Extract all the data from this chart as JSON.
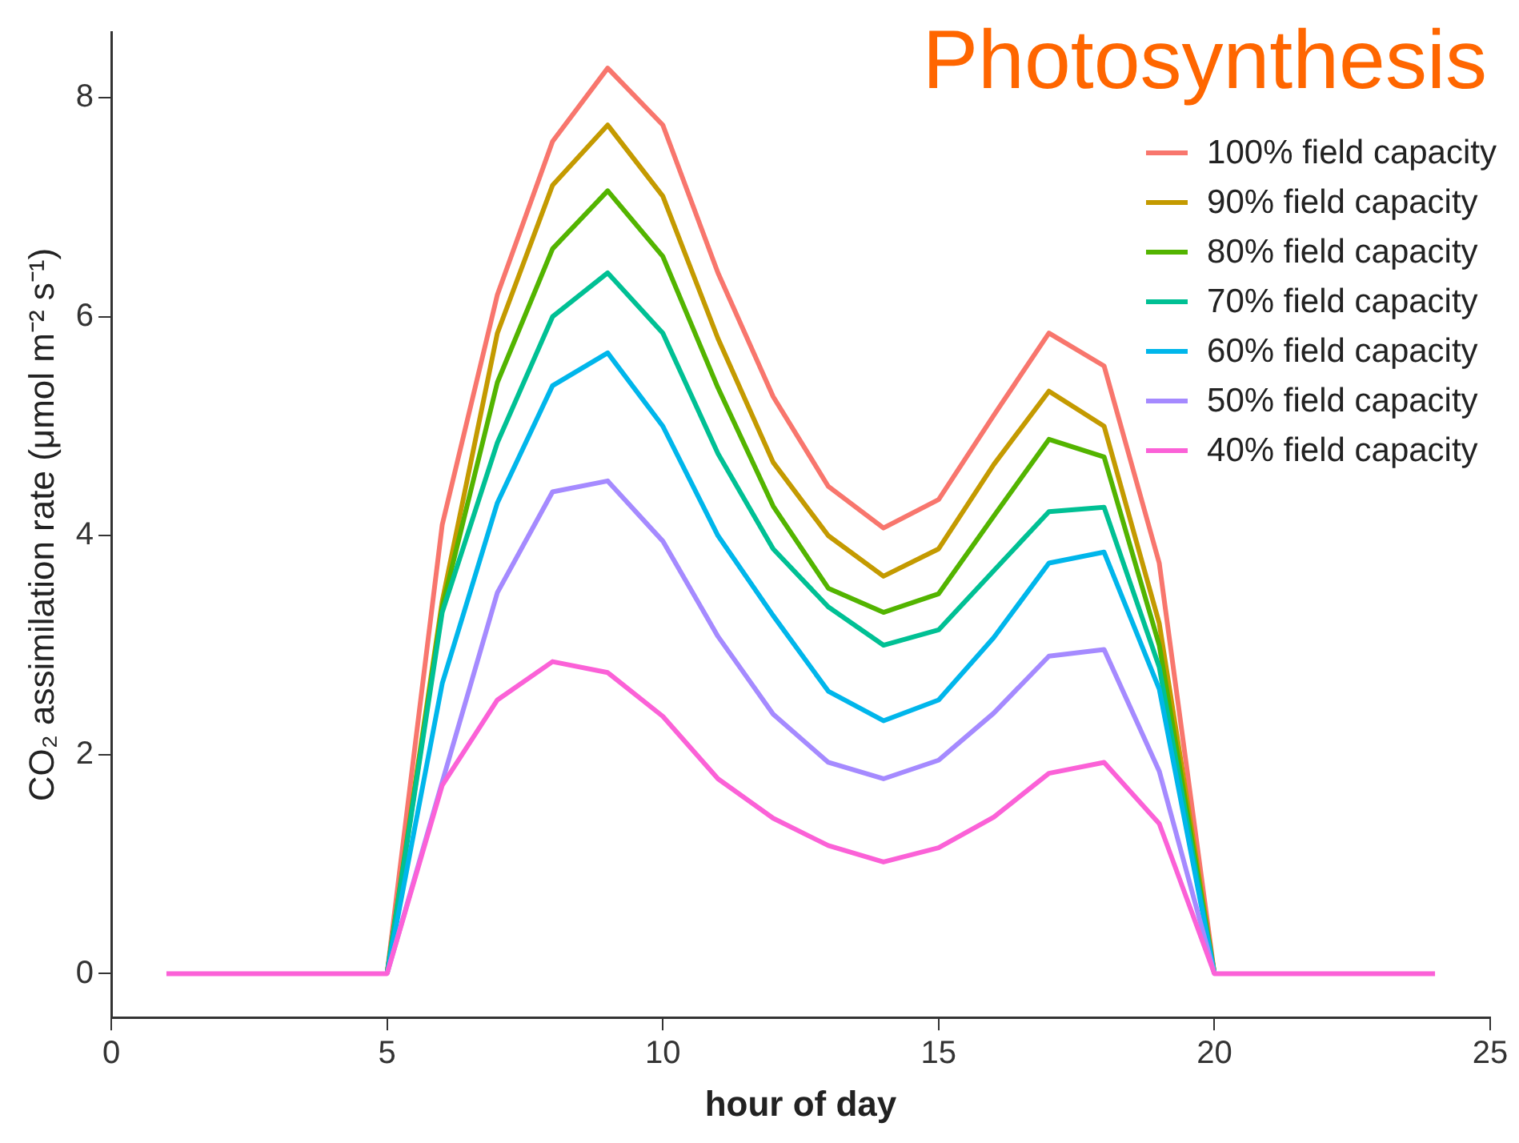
{
  "chart_data": {
    "type": "line",
    "title": "Photosynthesis",
    "xlabel": "hour of day",
    "ylabel": "CO₂ assimilation rate (μmol m⁻² s⁻¹)",
    "x": [
      1,
      2,
      3,
      4,
      5,
      6,
      7,
      8,
      9,
      10,
      11,
      12,
      13,
      14,
      15,
      16,
      17,
      18,
      19,
      20,
      21,
      22,
      23,
      24
    ],
    "xlim": [
      0,
      25
    ],
    "xticks": [
      0,
      5,
      10,
      15,
      20,
      25
    ],
    "ylim": [
      -0.4,
      8.6
    ],
    "yticks": [
      0,
      2,
      4,
      6,
      8
    ],
    "grid": false,
    "legend": "top right",
    "marker": "none",
    "line_style": "solid",
    "series": [
      {
        "name": "100% field capacity",
        "color": "#f8766d",
        "values": [
          null,
          null,
          null,
          null,
          0,
          4.1,
          6.2,
          7.6,
          8.27,
          7.75,
          6.4,
          5.27,
          4.45,
          4.07,
          4.33,
          5.1,
          5.85,
          5.55,
          3.75,
          0,
          null,
          null,
          null,
          null
        ]
      },
      {
        "name": "90% field capacity",
        "color": "#c49a00",
        "values": [
          null,
          null,
          null,
          null,
          0,
          3.4,
          5.85,
          7.2,
          7.75,
          7.1,
          5.8,
          4.67,
          4.0,
          3.63,
          3.88,
          4.65,
          5.32,
          5.0,
          3.2,
          0,
          null,
          null,
          null,
          null
        ]
      },
      {
        "name": "80% field capacity",
        "color": "#53b400",
        "values": [
          null,
          null,
          null,
          null,
          0,
          3.35,
          5.4,
          6.62,
          7.15,
          6.55,
          5.35,
          4.27,
          3.52,
          3.3,
          3.47,
          4.18,
          4.88,
          4.72,
          3.0,
          0,
          null,
          null,
          null,
          null
        ]
      },
      {
        "name": "70% field capacity",
        "color": "#00c094",
        "values": [
          null,
          null,
          null,
          null,
          0,
          3.3,
          4.85,
          6.0,
          6.4,
          5.85,
          4.75,
          3.88,
          3.35,
          3.0,
          3.14,
          3.68,
          4.22,
          4.26,
          2.8,
          0,
          null,
          null,
          null,
          null
        ]
      },
      {
        "name": "60% field capacity",
        "color": "#00b6eb",
        "values": [
          null,
          null,
          null,
          null,
          0,
          2.65,
          4.3,
          5.37,
          5.67,
          5.0,
          4.0,
          3.27,
          2.58,
          2.31,
          2.5,
          3.07,
          3.75,
          3.85,
          2.6,
          0,
          null,
          null,
          null,
          null
        ]
      },
      {
        "name": "50% field capacity",
        "color": "#a58aff",
        "values": [
          null,
          null,
          null,
          null,
          0,
          1.75,
          3.48,
          4.4,
          4.5,
          3.95,
          3.08,
          2.37,
          1.93,
          1.78,
          1.95,
          2.38,
          2.9,
          2.96,
          1.85,
          0,
          null,
          null,
          null,
          null
        ]
      },
      {
        "name": "40% field capacity",
        "color": "#fb61d7",
        "values": [
          0,
          0,
          0,
          0,
          0,
          1.72,
          2.5,
          2.85,
          2.75,
          2.35,
          1.78,
          1.42,
          1.17,
          1.02,
          1.15,
          1.43,
          1.83,
          1.93,
          1.37,
          0,
          0,
          0,
          0,
          0
        ]
      }
    ]
  }
}
